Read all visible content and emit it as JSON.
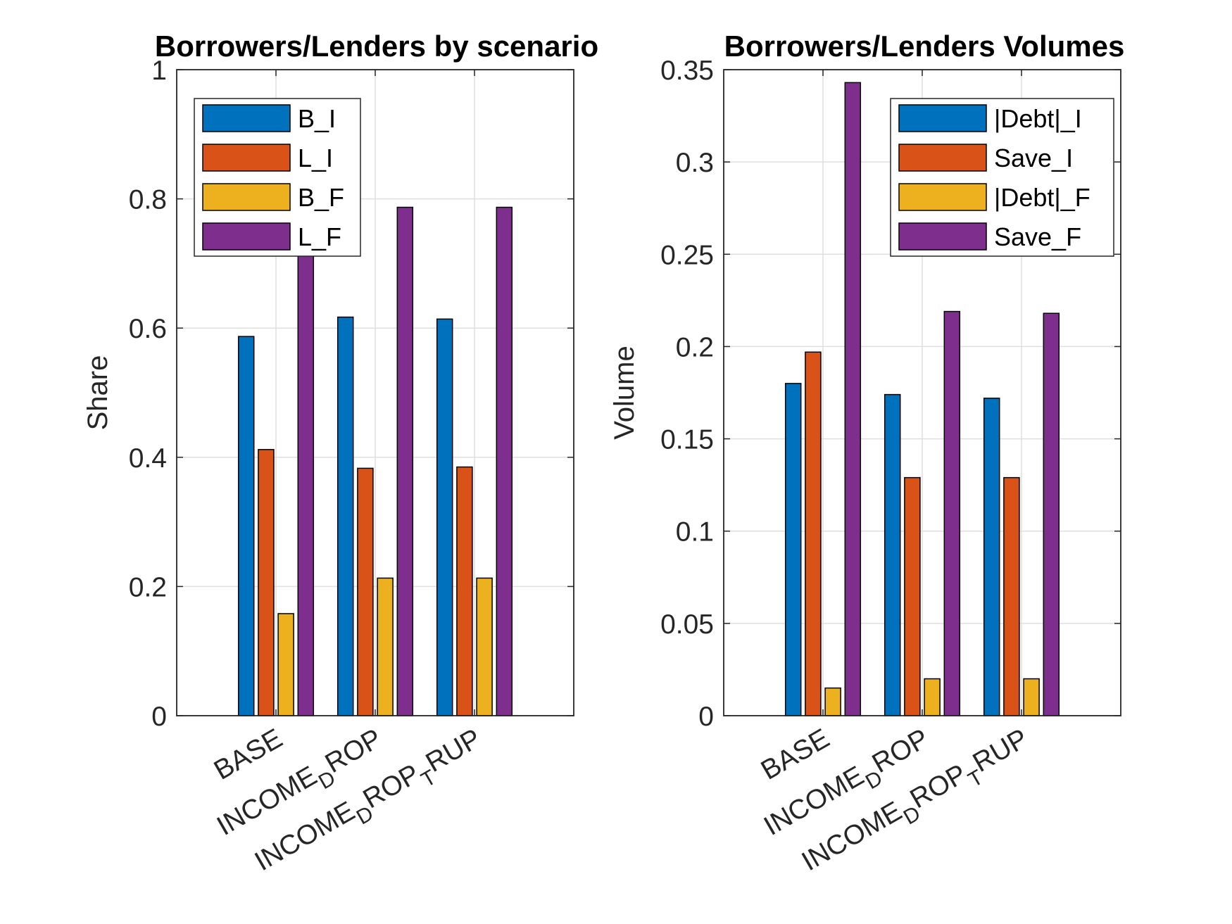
{
  "chart_data": [
    {
      "type": "bar",
      "title": "Borrowers/Lenders by scenario",
      "xlabel": "",
      "ylabel": "Share",
      "ylim": [
        0,
        1
      ],
      "yticks": [
        0,
        0.2,
        0.4,
        0.6,
        0.8,
        1
      ],
      "ytick_labels": [
        "0",
        "0.2",
        "0.4",
        "0.6",
        "0.8",
        "1"
      ],
      "grid": true,
      "legend_position": "top-left",
      "categories": [
        "BASE",
        "INCOME_DROP",
        "INCOME_DROP_TRUP"
      ],
      "category_labels": [
        {
          "parts": [
            {
              "text": "BASE",
              "sub": false
            }
          ]
        },
        {
          "parts": [
            {
              "text": "INCOME",
              "sub": false
            },
            {
              "text": "D",
              "sub": true
            },
            {
              "text": "ROP",
              "sub": false
            }
          ]
        },
        {
          "parts": [
            {
              "text": "INCOME",
              "sub": false
            },
            {
              "text": "D",
              "sub": true
            },
            {
              "text": "ROP",
              "sub": false
            },
            {
              "text": "T",
              "sub": true
            },
            {
              "text": "RUP",
              "sub": false
            }
          ]
        }
      ],
      "series": [
        {
          "name": "B_I",
          "color": "#0072BD",
          "values": [
            0.587,
            0.617,
            0.614
          ]
        },
        {
          "name": "L_I",
          "color": "#D95319",
          "values": [
            0.412,
            0.383,
            0.385
          ]
        },
        {
          "name": "B_F",
          "color": "#EDB120",
          "values": [
            0.158,
            0.213,
            0.213
          ]
        },
        {
          "name": "L_F",
          "color": "#7E2F8E",
          "values": [
            0.722,
            0.787,
            0.787
          ]
        }
      ]
    },
    {
      "type": "bar",
      "title": "Borrowers/Lenders Volumes",
      "xlabel": "",
      "ylabel": "Volume",
      "ylim": [
        0,
        0.35
      ],
      "yticks": [
        0,
        0.05,
        0.1,
        0.15,
        0.2,
        0.25,
        0.3,
        0.35
      ],
      "ytick_labels": [
        "0",
        "0.05",
        "0.1",
        "0.15",
        "0.2",
        "0.25",
        "0.3",
        "0.35"
      ],
      "grid": true,
      "legend_position": "top-right",
      "categories": [
        "BASE",
        "INCOME_DROP",
        "INCOME_DROP_TRUP"
      ],
      "category_labels": [
        {
          "parts": [
            {
              "text": "BASE",
              "sub": false
            }
          ]
        },
        {
          "parts": [
            {
              "text": "INCOME",
              "sub": false
            },
            {
              "text": "D",
              "sub": true
            },
            {
              "text": "ROP",
              "sub": false
            }
          ]
        },
        {
          "parts": [
            {
              "text": "INCOME",
              "sub": false
            },
            {
              "text": "D",
              "sub": true
            },
            {
              "text": "ROP",
              "sub": false
            },
            {
              "text": "T",
              "sub": true
            },
            {
              "text": "RUP",
              "sub": false
            }
          ]
        }
      ],
      "series": [
        {
          "name": "|Debt|_I",
          "color": "#0072BD",
          "values": [
            0.18,
            0.174,
            0.172
          ]
        },
        {
          "name": "Save_I",
          "color": "#D95319",
          "values": [
            0.197,
            0.129,
            0.129
          ]
        },
        {
          "name": "|Debt|_F",
          "color": "#EDB120",
          "values": [
            0.015,
            0.02,
            0.02
          ]
        },
        {
          "name": "Save_F",
          "color": "#7E2F8E",
          "values": [
            0.343,
            0.219,
            0.218
          ]
        }
      ]
    }
  ]
}
